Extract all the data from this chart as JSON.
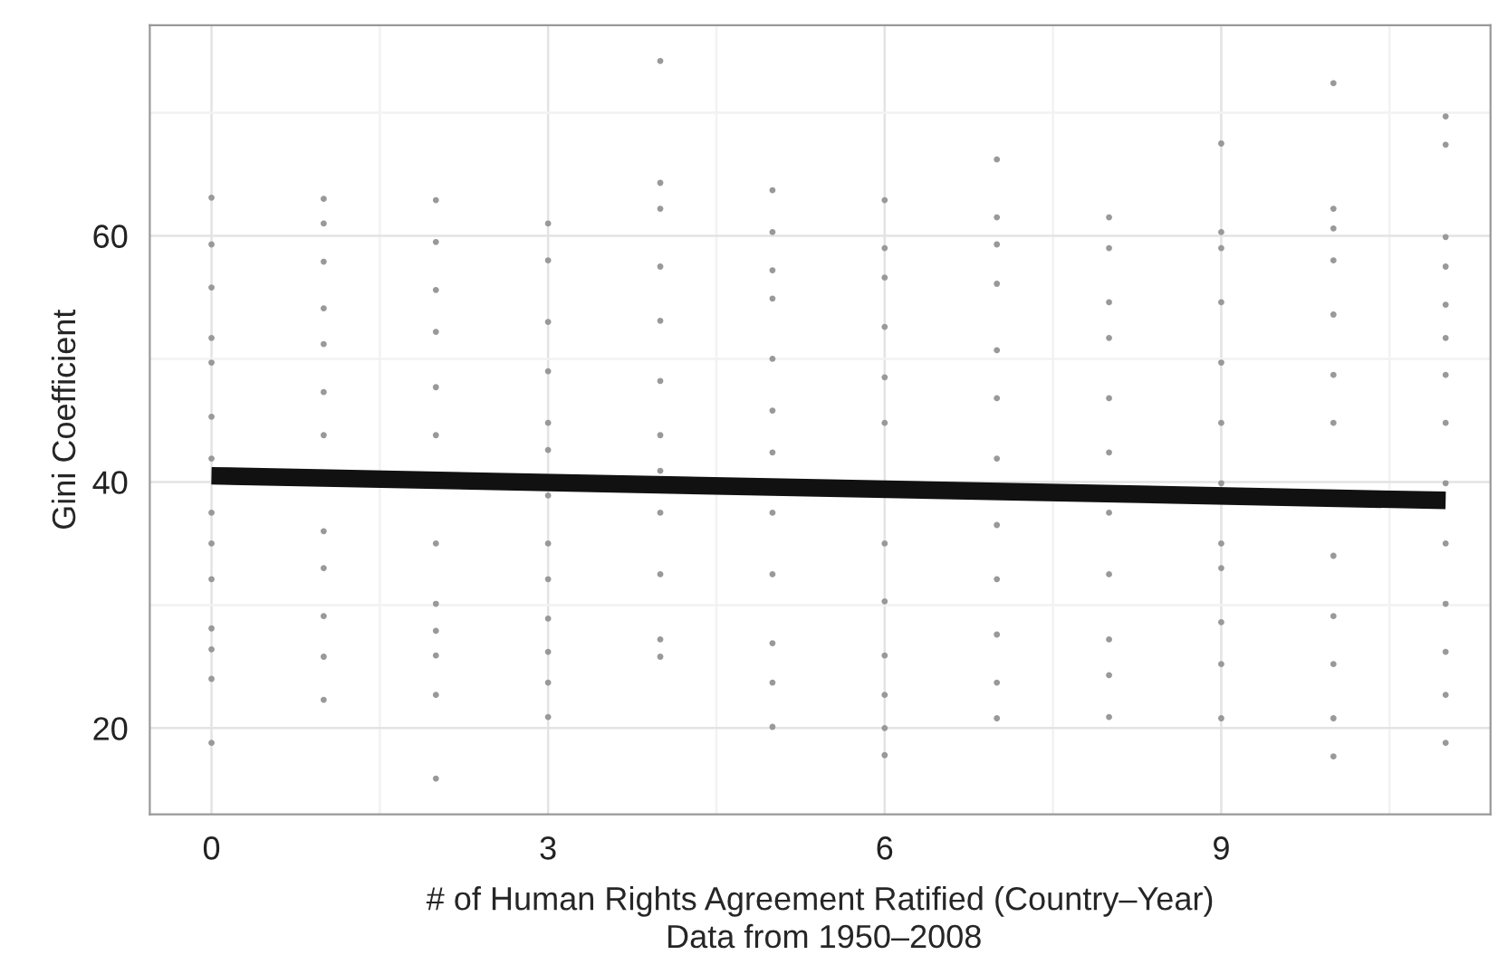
{
  "chart_data": {
    "type": "scatter",
    "xlabel": "# of Human Rights Agreement Ratified (Country–Year)",
    "ylabel": "Gini Coefficient",
    "annotations": [
      "Data from 1950–2008"
    ],
    "xlim": [
      -0.55,
      11.4
    ],
    "ylim": [
      13.0,
      77.1
    ],
    "xticks": [
      0,
      3,
      6,
      9
    ],
    "yticks": [
      20,
      40,
      60
    ],
    "grid": true,
    "legend": false,
    "marker": "circle",
    "series": [
      {
        "color": "#999999",
        "x": [
          0,
          0,
          0,
          0,
          0,
          0,
          0,
          0,
          0,
          0,
          0,
          0,
          0,
          0,
          1,
          1,
          1,
          1,
          1,
          1,
          1,
          1,
          1,
          1,
          1,
          1,
          2,
          2,
          2,
          2,
          2,
          2,
          2,
          2,
          2,
          2,
          2,
          2,
          3,
          3,
          3,
          3,
          3,
          3,
          3,
          3,
          3,
          3,
          3,
          3,
          3,
          4,
          4,
          4,
          4,
          4,
          4,
          4,
          4,
          4,
          4,
          4,
          4,
          5,
          5,
          5,
          5,
          5,
          5,
          5,
          5,
          5,
          5,
          5,
          5,
          6,
          6,
          6,
          6,
          6,
          6,
          6,
          6,
          6,
          6,
          6,
          6,
          7,
          7,
          7,
          7,
          7,
          7,
          7,
          7,
          7,
          7,
          7,
          7,
          8,
          8,
          8,
          8,
          8,
          8,
          8,
          8,
          8,
          8,
          8,
          9,
          9,
          9,
          9,
          9,
          9,
          9,
          9,
          9,
          9,
          9,
          9,
          10,
          10,
          10,
          10,
          10,
          10,
          10,
          10,
          10,
          10,
          10,
          10,
          11,
          11,
          11,
          11,
          11,
          11,
          11,
          11,
          11,
          11,
          11,
          11,
          11,
          11
        ],
        "values": [
          63.1,
          59.3,
          55.8,
          51.7,
          49.7,
          45.3,
          41.9,
          37.5,
          35.0,
          32.1,
          28.1,
          26.4,
          24.0,
          18.8,
          63.0,
          61.0,
          57.9,
          54.1,
          51.2,
          47.3,
          43.8,
          36.0,
          33.0,
          29.1,
          25.8,
          22.3,
          62.9,
          59.5,
          55.6,
          52.2,
          47.7,
          43.8,
          35.0,
          30.1,
          27.9,
          25.9,
          22.7,
          15.9,
          61.0,
          58.0,
          53.0,
          49.0,
          44.8,
          42.6,
          38.9,
          35.0,
          32.1,
          28.9,
          26.2,
          23.7,
          20.9,
          74.2,
          64.3,
          62.2,
          57.5,
          53.1,
          48.2,
          43.8,
          40.9,
          37.5,
          32.5,
          27.2,
          25.8,
          63.7,
          60.3,
          57.2,
          54.9,
          50.0,
          45.8,
          42.4,
          37.5,
          32.5,
          26.9,
          23.7,
          20.1,
          62.9,
          59.0,
          56.6,
          52.6,
          48.5,
          44.8,
          35.0,
          30.3,
          25.9,
          22.7,
          20.0,
          17.8,
          66.2,
          61.5,
          59.3,
          56.1,
          50.7,
          46.8,
          41.9,
          36.5,
          32.1,
          27.6,
          23.7,
          20.8,
          61.5,
          59.0,
          54.6,
          51.7,
          46.8,
          42.4,
          37.5,
          32.5,
          27.2,
          24.3,
          20.9,
          67.5,
          60.3,
          59.0,
          54.6,
          49.7,
          44.8,
          39.9,
          35.0,
          33.0,
          28.6,
          25.2,
          20.8,
          72.4,
          62.2,
          60.6,
          58.0,
          53.6,
          48.7,
          44.8,
          34.0,
          29.1,
          25.2,
          20.8,
          17.7,
          69.7,
          67.4,
          59.9,
          57.5,
          54.4,
          51.7,
          48.7,
          44.8,
          39.9,
          35.0,
          30.1,
          26.2,
          22.7,
          18.8
        ]
      },
      {
        "type": "line",
        "color": "#111111",
        "x": [
          0,
          11
        ],
        "values": [
          40.5,
          38.5
        ],
        "lower": [
          39.9,
          38.0
        ],
        "upper": [
          41.1,
          39.0
        ],
        "marker": "none"
      }
    ]
  }
}
